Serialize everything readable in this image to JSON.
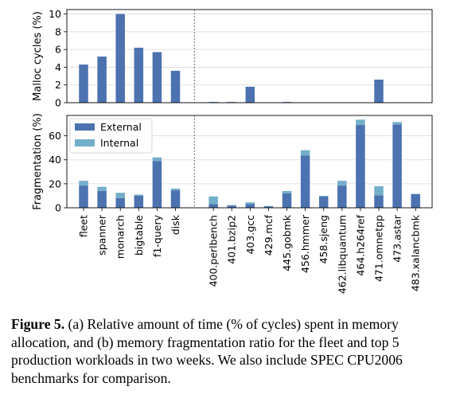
{
  "chart_data": [
    {
      "type": "bar",
      "panel": "top",
      "ylabel": "Malloc cycles (%)",
      "ylim": [
        0,
        10.5
      ],
      "yticks": [
        0,
        2,
        4,
        6,
        8,
        10
      ],
      "grid": "y",
      "categories": [
        "fleet",
        "spanner",
        "monarch",
        "bigtable",
        "f1-query",
        "disk",
        "400.perlbench",
        "401.bzip2",
        "403.gcc",
        "429.mcf",
        "445.gobmk",
        "456.hmmer",
        "458.sjeng",
        "462.libquantum",
        "464.h264ref",
        "471.omnetpp",
        "473.astar",
        "483.xalancbmk"
      ],
      "values": [
        4.3,
        5.2,
        10.0,
        6.2,
        5.7,
        3.6,
        0.05,
        0.05,
        1.8,
        0.0,
        0.05,
        0.0,
        0.0,
        0.0,
        0.0,
        2.6,
        0.0,
        0.0
      ],
      "color": "#4c72b0"
    },
    {
      "type": "bar",
      "panel": "bottom",
      "stacked": true,
      "ylabel": "Fragmentation (%)",
      "ylim": [
        0,
        77
      ],
      "yticks": [
        0,
        20,
        40,
        60
      ],
      "grid": "y",
      "legend": "top-left",
      "categories": [
        "fleet",
        "spanner",
        "monarch",
        "bigtable",
        "f1-query",
        "disk",
        "400.perlbench",
        "401.bzip2",
        "403.gcc",
        "429.mcf",
        "445.gobmk",
        "456.hmmer",
        "458.sjeng",
        "462.libquantum",
        "464.h264ref",
        "471.omnetpp",
        "473.astar",
        "483.xalancbmk"
      ],
      "series": [
        {
          "name": "External",
          "color": "#4c72b0",
          "values": [
            18.5,
            14,
            8,
            10,
            39,
            14.5,
            3,
            1.8,
            3,
            1,
            12,
            43.5,
            9.5,
            18.5,
            69,
            10.5,
            69.5,
            11.5
          ]
        },
        {
          "name": "Internal",
          "color": "#73afc9",
          "values": [
            4,
            3.5,
            4.5,
            1,
            3,
            1.5,
            6.5,
            0.5,
            1.5,
            0.5,
            2,
            4.5,
            0.5,
            4,
            4.5,
            7.5,
            2,
            0
          ]
        }
      ]
    }
  ],
  "caption": {
    "label": "Figure 5.",
    "text": " (a) Relative amount of time (% of cycles) spent in memory allocation, and (b) memory fragmentation ratio for the fleet and top 5 production workloads in two weeks. We also include SPEC CPU2006 benchmarks for comparison."
  }
}
